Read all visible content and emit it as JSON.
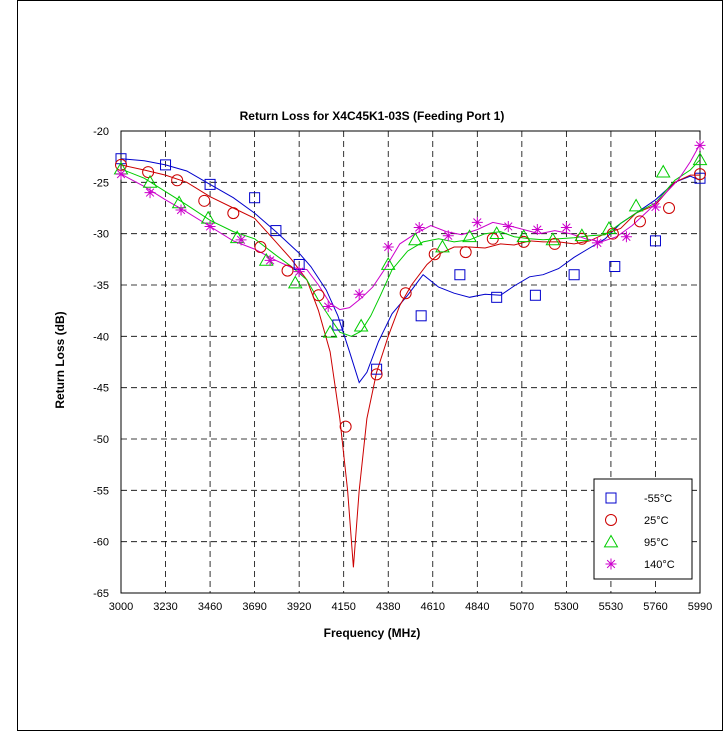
{
  "chart_data": {
    "type": "line",
    "title": "Return Loss for X4C45K1-03S (Feeding Port 1)",
    "xlabel": "Frequency (MHz)",
    "ylabel": "Return Loss (dB)",
    "xlim": [
      3000,
      5990
    ],
    "ylim": [
      -65,
      -20
    ],
    "x_ticks": [
      3000,
      3230,
      3460,
      3690,
      3920,
      4150,
      4380,
      4610,
      4840,
      5070,
      5300,
      5530,
      5760,
      5990
    ],
    "y_ticks": [
      -20,
      -25,
      -30,
      -35,
      -40,
      -45,
      -50,
      -55,
      -60,
      -65
    ],
    "grid": true,
    "legend_position": "bottom-right",
    "series": [
      {
        "name": "-55°C",
        "color": "#0000cc",
        "marker": "square",
        "x": [
          3000,
          3120,
          3230,
          3340,
          3460,
          3580,
          3690,
          3800,
          3920,
          3980,
          4060,
          4120,
          4180,
          4230,
          4270,
          4330,
          4400,
          4480,
          4560,
          4640,
          4720,
          4800,
          4880,
          4960,
          5030,
          5110,
          5180,
          5260,
          5340,
          5420,
          5500,
          5580,
          5660,
          5760,
          5860,
          5940,
          5990
        ],
        "y": [
          -22.7,
          -22.9,
          -23.3,
          -23.9,
          -25.2,
          -26.5,
          -28.0,
          -29.8,
          -31.9,
          -33.2,
          -35.5,
          -38.0,
          -41.5,
          -44.5,
          -43.5,
          -40.5,
          -37.8,
          -36.0,
          -34.0,
          -35.2,
          -35.8,
          -36.2,
          -35.9,
          -36.0,
          -35.1,
          -34.2,
          -34.0,
          -33.4,
          -32.3,
          -31.4,
          -30.5,
          -29.0,
          -28.0,
          -26.7,
          -25.0,
          -24.4,
          -24.8
        ],
        "marker_x": [
          3000,
          3230,
          3460,
          3690,
          3800,
          3920,
          4120,
          4320,
          4550,
          4750,
          4940,
          5140,
          5340,
          5550,
          5760,
          5990
        ],
        "marker_y": [
          -22.7,
          -23.3,
          -25.2,
          -26.5,
          -29.7,
          -33.0,
          -38.9,
          -43.2,
          -38.0,
          -34.0,
          -36.2,
          -36.0,
          -34.0,
          -33.2,
          -30.7,
          -24.6
        ]
      },
      {
        "name": "25°C",
        "color": "#cc0000",
        "marker": "circle",
        "x": [
          3000,
          3120,
          3230,
          3340,
          3460,
          3580,
          3690,
          3800,
          3880,
          3960,
          4020,
          4080,
          4130,
          4170,
          4200,
          4230,
          4270,
          4320,
          4380,
          4440,
          4500,
          4580,
          4640,
          4720,
          4800,
          4880,
          4960,
          5030,
          5110,
          5180,
          5260,
          5340,
          5420,
          5500,
          5580,
          5660,
          5760,
          5860,
          5940,
          5990
        ],
        "y": [
          -23.3,
          -23.8,
          -24.3,
          -25.0,
          -26.4,
          -27.5,
          -28.5,
          -30.8,
          -32.5,
          -34.5,
          -37.5,
          -41.5,
          -48.0,
          -55.0,
          -62.5,
          -55.0,
          -48.0,
          -43.5,
          -40.0,
          -37.0,
          -35.0,
          -33.0,
          -32.0,
          -31.3,
          -31.3,
          -31.4,
          -31.0,
          -31.1,
          -30.7,
          -30.8,
          -30.8,
          -31.0,
          -30.7,
          -30.0,
          -29.5,
          -28.0,
          -27.2,
          -25.0,
          -24.3,
          -24.3
        ],
        "marker_x": [
          3000,
          3140,
          3290,
          3430,
          3580,
          3720,
          3860,
          4020,
          4160,
          4320,
          4470,
          4620,
          4780,
          4920,
          5080,
          5240,
          5380,
          5540,
          5680,
          5830,
          5990
        ],
        "marker_y": [
          -23.3,
          -24.0,
          -24.8,
          -26.8,
          -28.0,
          -31.3,
          -33.6,
          -36.0,
          -48.8,
          -43.7,
          -35.8,
          -32.0,
          -31.8,
          -30.5,
          -30.8,
          -31.0,
          -30.5,
          -30.0,
          -28.8,
          -27.5,
          -24.2
        ]
      },
      {
        "name": "95°C",
        "color": "#00cc00",
        "marker": "triangle",
        "x": [
          3000,
          3120,
          3230,
          3340,
          3460,
          3580,
          3690,
          3800,
          3880,
          3960,
          4020,
          4080,
          4130,
          4190,
          4240,
          4290,
          4340,
          4400,
          4480,
          4560,
          4640,
          4720,
          4800,
          4880,
          4960,
          5030,
          5110,
          5180,
          5260,
          5340,
          5420,
          5500,
          5580,
          5660,
          5760,
          5860,
          5940,
          5990
        ],
        "y": [
          -23.7,
          -24.6,
          -25.9,
          -27.2,
          -28.7,
          -29.8,
          -30.5,
          -32.1,
          -33.2,
          -34.5,
          -36.5,
          -38.2,
          -39.6,
          -40.0,
          -39.5,
          -38.0,
          -36.0,
          -33.5,
          -31.7,
          -30.8,
          -30.5,
          -30.8,
          -30.6,
          -30.0,
          -29.8,
          -30.3,
          -30.5,
          -30.6,
          -30.5,
          -30.4,
          -30.2,
          -30.1,
          -29.0,
          -28.0,
          -27.0,
          -24.8,
          -23.8,
          -22.8
        ],
        "marker_x": [
          3000,
          3150,
          3300,
          3450,
          3600,
          3750,
          3900,
          4080,
          4240,
          4380,
          4520,
          4660,
          4800,
          4940,
          5080,
          5230,
          5380,
          5520,
          5660,
          5800,
          5990
        ],
        "marker_y": [
          -23.7,
          -25.0,
          -27.0,
          -28.5,
          -30.4,
          -32.6,
          -34.8,
          -39.6,
          -39.0,
          -33.0,
          -30.6,
          -31.3,
          -30.3,
          -30.0,
          -30.3,
          -30.6,
          -30.2,
          -29.5,
          -27.3,
          -24.0,
          -22.8
        ]
      },
      {
        "name": "140°C",
        "color": "#cc00cc",
        "marker": "star",
        "x": [
          3000,
          3120,
          3230,
          3340,
          3460,
          3580,
          3690,
          3800,
          3880,
          3960,
          4020,
          4080,
          4130,
          4180,
          4240,
          4300,
          4360,
          4440,
          4520,
          4600,
          4680,
          4760,
          4840,
          4920,
          5000,
          5080,
          5160,
          5240,
          5320,
          5400,
          5480,
          5560,
          5640,
          5720,
          5800,
          5880,
          5940,
          5990
        ],
        "y": [
          -24.2,
          -25.4,
          -26.7,
          -27.9,
          -29.3,
          -30.7,
          -31.5,
          -32.6,
          -33.3,
          -33.5,
          -35.0,
          -36.8,
          -37.4,
          -37.2,
          -36.3,
          -35.2,
          -33.5,
          -31.0,
          -30.0,
          -29.2,
          -29.8,
          -30.1,
          -29.6,
          -28.9,
          -29.2,
          -29.6,
          -30.0,
          -29.7,
          -30.0,
          -30.5,
          -30.8,
          -30.3,
          -29.2,
          -27.8,
          -26.3,
          -24.7,
          -23.0,
          -21.3
        ],
        "marker_x": [
          3000,
          3150,
          3310,
          3460,
          3620,
          3770,
          3920,
          4070,
          4230,
          4380,
          4540,
          4690,
          4840,
          5000,
          5150,
          5300,
          5460,
          5610,
          5760,
          5990
        ],
        "marker_y": [
          -24.2,
          -26.0,
          -27.7,
          -29.3,
          -30.6,
          -32.6,
          -33.7,
          -37.1,
          -35.9,
          -31.3,
          -29.4,
          -30.2,
          -28.9,
          -29.3,
          -29.6,
          -29.4,
          -30.9,
          -30.3,
          -27.4,
          -21.4
        ]
      }
    ]
  }
}
